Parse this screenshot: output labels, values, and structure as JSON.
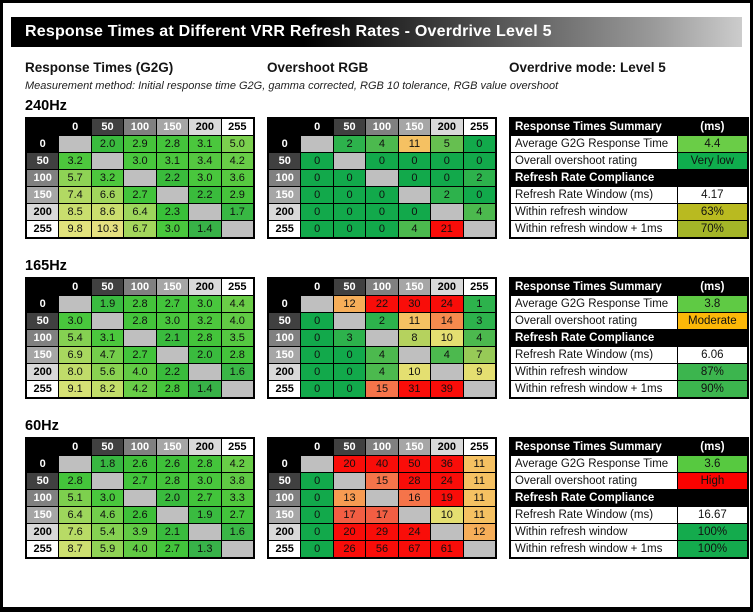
{
  "header": {
    "title": "Response Times at Different VRR Refresh Rates - Overdrive Level 5",
    "col_g2g": "Response Times (G2G)",
    "col_overshoot": "Overshoot RGB",
    "overdrive_mode": "Overdrive mode: Level 5",
    "method_note": "Measurement method: Initial response time G2G, gamma corrected, RGB 10 tolerance, RGB value overshoot"
  },
  "summary_labels": {
    "header": "Response Times Summary",
    "unit": "(ms)",
    "avg": "Average G2G Response Time",
    "rating": "Overall overshoot rating",
    "compliance": "Refresh Rate Compliance",
    "window": "Refresh Rate Window (ms)",
    "within": "Within refresh window",
    "within1": "Within refresh window + 1ms"
  },
  "palette": {
    "header_grays": [
      "#000000",
      "#404040",
      "#808080",
      "#a6a6a6",
      "#d9d9d9",
      "#ffffff"
    ],
    "blank_cell": "#bfbfbf",
    "green_deep": "#12a94b",
    "green": "#2db24c",
    "green_light": "#4cb94e",
    "green_lighter": "#66bf50",
    "yellow_green": "#97ca57",
    "yellow_green2": "#b5d25e",
    "yellow": "#e4df71",
    "amber": "#f5c162",
    "orange": "#f6ae59",
    "orange2": "#f79b52",
    "orange3": "#f68a4e",
    "orange_red": "#f5744a",
    "orange_red2": "#f25e43",
    "red": "#f90d09"
  },
  "chart_data": {
    "type": "heatmap",
    "levels": [
      "0",
      "50",
      "100",
      "150",
      "200",
      "255"
    ],
    "sections": [
      {
        "label": "240Hz",
        "g2g_ms": [
          [
            null,
            2.0,
            2.9,
            2.8,
            3.1,
            5.0
          ],
          [
            3.2,
            null,
            3.0,
            3.1,
            3.4,
            4.2
          ],
          [
            5.7,
            3.2,
            null,
            2.2,
            3.0,
            3.6
          ],
          [
            7.4,
            6.6,
            2.7,
            null,
            2.2,
            2.9
          ],
          [
            8.5,
            8.6,
            6.4,
            2.3,
            null,
            1.7
          ],
          [
            9.8,
            10.3,
            6.7,
            3.0,
            1.4,
            null
          ]
        ],
        "overshoot_rgb": [
          [
            null,
            2,
            4,
            11,
            5,
            0
          ],
          [
            0,
            null,
            0,
            0,
            0,
            0
          ],
          [
            0,
            0,
            null,
            0,
            0,
            2
          ],
          [
            0,
            0,
            0,
            null,
            2,
            0
          ],
          [
            0,
            0,
            0,
            0,
            null,
            4
          ],
          [
            0,
            0,
            0,
            4,
            21,
            null
          ]
        ],
        "summary": {
          "avg_g2g_ms": 4.4,
          "overshoot_rating": "Very low",
          "overshoot_rating_color": "#0fad4d",
          "refresh_rate_window_ms": "4.17",
          "within_refresh_window": "63%",
          "within_refresh_window_color": "#b9ba20",
          "within_refresh_window_1ms": "70%",
          "within_refresh_window_1ms_color": "#a4b528"
        }
      },
      {
        "label": "165Hz",
        "g2g_ms": [
          [
            null,
            1.9,
            2.8,
            2.7,
            3.0,
            4.4
          ],
          [
            3.0,
            null,
            2.8,
            3.0,
            3.2,
            4.0
          ],
          [
            5.4,
            3.1,
            null,
            2.1,
            2.8,
            3.5
          ],
          [
            6.9,
            4.7,
            2.7,
            null,
            2.0,
            2.8
          ],
          [
            8.0,
            5.6,
            4.0,
            2.2,
            null,
            1.6
          ],
          [
            9.1,
            8.2,
            4.2,
            2.8,
            1.4,
            null
          ]
        ],
        "overshoot_rgb": [
          [
            null,
            12,
            22,
            30,
            24,
            1
          ],
          [
            0,
            null,
            2,
            11,
            14,
            3
          ],
          [
            0,
            3,
            null,
            8,
            10,
            4
          ],
          [
            0,
            0,
            4,
            null,
            4,
            7
          ],
          [
            0,
            0,
            4,
            10,
            null,
            9
          ],
          [
            0,
            0,
            15,
            31,
            39,
            null
          ]
        ],
        "summary": {
          "avg_g2g_ms": 3.8,
          "overshoot_rating": "Moderate",
          "overshoot_rating_color": "#fcb808",
          "refresh_rate_window_ms": "6.06",
          "within_refresh_window": "87%",
          "within_refresh_window_color": "#3cb54e",
          "within_refresh_window_1ms": "90%",
          "within_refresh_window_1ms_color": "#3cb54e"
        }
      },
      {
        "label": "60Hz",
        "g2g_ms": [
          [
            null,
            1.8,
            2.6,
            2.6,
            2.8,
            4.2
          ],
          [
            2.8,
            null,
            2.7,
            2.8,
            3.0,
            3.8
          ],
          [
            5.1,
            3.0,
            null,
            2.0,
            2.7,
            3.3
          ],
          [
            6.4,
            4.6,
            2.6,
            null,
            1.9,
            2.7
          ],
          [
            7.6,
            5.4,
            3.9,
            2.1,
            null,
            1.6
          ],
          [
            8.7,
            5.9,
            4.0,
            2.7,
            1.3,
            null
          ]
        ],
        "overshoot_rgb": [
          [
            null,
            20,
            40,
            50,
            36,
            11
          ],
          [
            0,
            null,
            15,
            28,
            24,
            11
          ],
          [
            0,
            13,
            null,
            16,
            19,
            11
          ],
          [
            0,
            17,
            17,
            null,
            10,
            11
          ],
          [
            0,
            20,
            29,
            24,
            null,
            12
          ],
          [
            0,
            26,
            56,
            67,
            61,
            null
          ]
        ],
        "summary": {
          "avg_g2g_ms": 3.6,
          "overshoot_rating": "High",
          "overshoot_rating_color": "#fb0200",
          "refresh_rate_window_ms": "16.67",
          "within_refresh_window": "100%",
          "within_refresh_window_color": "#14ab4d",
          "within_refresh_window_1ms": "100%",
          "within_refresh_window_1ms_color": "#14ab4d"
        }
      }
    ]
  }
}
